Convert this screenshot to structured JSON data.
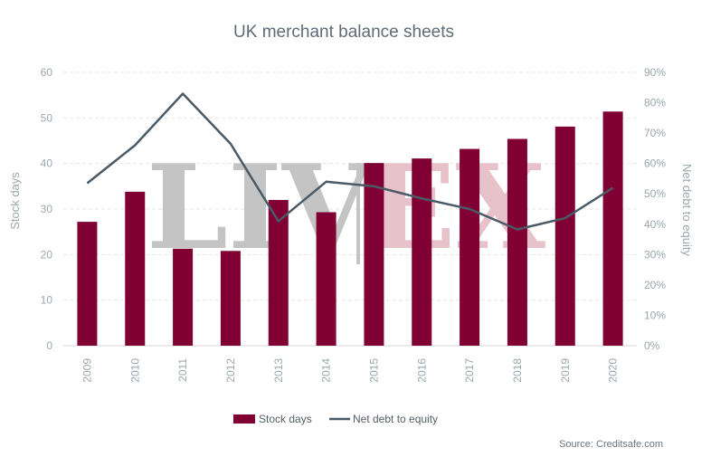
{
  "chart_data": {
    "type": "bar",
    "title": "UK merchant balance sheets",
    "categories": [
      "2009",
      "2010",
      "2011",
      "2012",
      "2013",
      "2014",
      "2015",
      "2016",
      "2017",
      "2018",
      "2019",
      "2020"
    ],
    "series": [
      {
        "name": "Stock days",
        "type": "bar",
        "axis": "left",
        "color": "#800033",
        "values": [
          27.2,
          33.8,
          21.3,
          20.8,
          32.0,
          29.3,
          40.1,
          41.1,
          43.2,
          45.4,
          48.1,
          51.4
        ]
      },
      {
        "name": "Net debt to equity",
        "type": "line",
        "axis": "right",
        "color": "#4a5a66",
        "values": [
          53.5,
          66.0,
          83.0,
          66.5,
          41.0,
          54.0,
          52.5,
          48.5,
          45.0,
          38.3,
          42.0,
          52.0
        ]
      }
    ],
    "ylabel": "Stock days",
    "ylim": [
      0,
      60
    ],
    "yticks": [
      "0",
      "10",
      "20",
      "30",
      "40",
      "50",
      "60"
    ],
    "y2label": "Net debt to equity",
    "y2lim": [
      0,
      90
    ],
    "y2ticks": [
      "0%",
      "10%",
      "20%",
      "30%",
      "40%",
      "50%",
      "60%",
      "70%",
      "80%",
      "90%"
    ],
    "grid": true,
    "legend_position": "bottom",
    "source": "Source: Creditsafe.com",
    "watermark": "LIV|EX"
  }
}
